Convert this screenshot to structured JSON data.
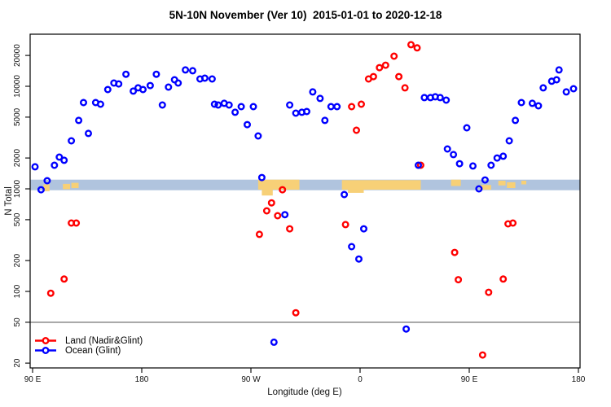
{
  "title": "5N-10N November (Ver 10)  2015-01-01 to 2020-12-18",
  "chart_data": {
    "type": "scatter",
    "title": "5N-10N November (Ver 10)  2015-01-01 to 2020-12-18",
    "xlabel": "Longitude (deg E)",
    "ylabel": "N Total",
    "x_axis": {
      "note": "longitude axis wraps eastward: 90E -> 180 -> 90W -> 0 -> 90E -> 180 (deg stored as 90..540 along axis)",
      "range_deg": [
        90,
        540
      ],
      "ticks_deg": [
        90,
        180,
        270,
        360,
        450,
        540
      ],
      "tick_labels": [
        "90 E",
        "180",
        "90 W",
        "0",
        "90 E",
        "180"
      ]
    },
    "y_axis": {
      "scale": "log",
      "range": [
        18,
        32000
      ],
      "ticks": [
        20,
        50,
        100,
        200,
        500,
        1000,
        2000,
        5000,
        10000,
        20000
      ]
    },
    "grid": false,
    "threshold_line": {
      "n": 50,
      "color": "#7f7f7f"
    },
    "band": {
      "n_low": 970,
      "n_high": 1230,
      "color": "#B0C4DE"
    },
    "land_patch_color": "#F7D077",
    "land_patches": [
      {
        "deg0": 99,
        "deg1": 104,
        "f0": 0.45,
        "f1": 1.1
      },
      {
        "deg0": 115,
        "deg1": 121,
        "f0": 0.4,
        "f1": 0.9
      },
      {
        "deg0": 122,
        "deg1": 128,
        "f0": 0.3,
        "f1": 0.8
      },
      {
        "deg0": 276,
        "deg1": 310,
        "f0": 0.0,
        "f1": 0.95
      },
      {
        "deg0": 279,
        "deg1": 288,
        "f0": 0.9,
        "f1": 1.5
      },
      {
        "deg0": 345,
        "deg1": 410,
        "f0": 0.05,
        "f1": 0.95
      },
      {
        "deg0": 350,
        "deg1": 363,
        "f0": 0.9,
        "f1": 1.25
      },
      {
        "deg0": 435,
        "deg1": 443,
        "f0": 0.0,
        "f1": 0.6
      },
      {
        "deg0": 459,
        "deg1": 468,
        "f0": 0.5,
        "f1": 0.95
      },
      {
        "deg0": 474,
        "deg1": 480,
        "f0": 0.1,
        "f1": 0.55
      },
      {
        "deg0": 481,
        "deg1": 488,
        "f0": 0.25,
        "f1": 0.8
      },
      {
        "deg0": 493,
        "deg1": 497,
        "f0": 0.1,
        "f1": 0.45
      }
    ],
    "legend": {
      "position": "bottom-left"
    },
    "series": [
      {
        "name": "Land (Nadir&Glint)",
        "color": "#FF0000",
        "points": [
          [
            105,
            96
          ],
          [
            116,
            132
          ],
          [
            122,
            464
          ],
          [
            126,
            464
          ],
          [
            277,
            360
          ],
          [
            283,
            610
          ],
          [
            287,
            730
          ],
          [
            292,
            547
          ],
          [
            296,
            980
          ],
          [
            302,
            408
          ],
          [
            307,
            62
          ],
          [
            348,
            448
          ],
          [
            353,
            6330
          ],
          [
            357,
            3730
          ],
          [
            361,
            6690
          ],
          [
            367,
            11790
          ],
          [
            371,
            12440
          ],
          [
            376,
            15190
          ],
          [
            381,
            16040
          ],
          [
            388,
            19650
          ],
          [
            392,
            12440
          ],
          [
            397,
            9650
          ],
          [
            402,
            25460
          ],
          [
            407,
            23710
          ],
          [
            410,
            1700
          ],
          [
            438,
            240
          ],
          [
            441,
            130
          ],
          [
            461,
            24
          ],
          [
            466,
            98
          ],
          [
            478,
            132
          ],
          [
            482,
            456
          ],
          [
            486,
            464
          ]
        ]
      },
      {
        "name": "Ocean (Glint)",
        "color": "#0000FF",
        "points": [
          [
            92,
            1640
          ],
          [
            97,
            980
          ],
          [
            102,
            1200
          ],
          [
            108,
            1700
          ],
          [
            112,
            2040
          ],
          [
            116,
            1900
          ],
          [
            122,
            2940
          ],
          [
            128,
            4650
          ],
          [
            132,
            6940
          ],
          [
            136,
            3470
          ],
          [
            142,
            6940
          ],
          [
            146,
            6690
          ],
          [
            152,
            9300
          ],
          [
            157,
            10750
          ],
          [
            161,
            10550
          ],
          [
            167,
            13100
          ],
          [
            173,
            8970
          ],
          [
            177,
            9650
          ],
          [
            181,
            9300
          ],
          [
            187,
            10170
          ],
          [
            192,
            13100
          ],
          [
            197,
            6570
          ],
          [
            202,
            9820
          ],
          [
            207,
            11580
          ],
          [
            210,
            10750
          ],
          [
            216,
            14430
          ],
          [
            222,
            14170
          ],
          [
            228,
            11790
          ],
          [
            232,
            12000
          ],
          [
            238,
            11790
          ],
          [
            240,
            6690
          ],
          [
            243,
            6570
          ],
          [
            248,
            6820
          ],
          [
            252,
            6570
          ],
          [
            257,
            5580
          ],
          [
            262,
            6330
          ],
          [
            267,
            4230
          ],
          [
            272,
            6330
          ],
          [
            276,
            3280
          ],
          [
            279,
            1290
          ],
          [
            289,
            32
          ],
          [
            298,
            560
          ],
          [
            302,
            6570
          ],
          [
            307,
            5470
          ],
          [
            312,
            5580
          ],
          [
            316,
            5680
          ],
          [
            321,
            8810
          ],
          [
            327,
            7610
          ],
          [
            331,
            4650
          ],
          [
            336,
            6330
          ],
          [
            341,
            6330
          ],
          [
            347,
            880
          ],
          [
            353,
            273
          ],
          [
            359,
            207
          ],
          [
            363,
            408
          ],
          [
            398,
            43
          ],
          [
            408,
            1700
          ],
          [
            413,
            7760
          ],
          [
            418,
            7760
          ],
          [
            422,
            7900
          ],
          [
            426,
            7760
          ],
          [
            431,
            7330
          ],
          [
            432,
            2450
          ],
          [
            437,
            2160
          ],
          [
            442,
            1760
          ],
          [
            448,
            3940
          ],
          [
            453,
            1670
          ],
          [
            458,
            1000
          ],
          [
            463,
            1220
          ],
          [
            468,
            1700
          ],
          [
            473,
            2000
          ],
          [
            478,
            2080
          ],
          [
            483,
            2940
          ],
          [
            488,
            4650
          ],
          [
            493,
            6940
          ],
          [
            502,
            6820
          ],
          [
            507,
            6450
          ],
          [
            511,
            9650
          ],
          [
            518,
            11200
          ],
          [
            522,
            11580
          ],
          [
            524,
            14430
          ],
          [
            530,
            8810
          ],
          [
            536,
            9470
          ]
        ]
      }
    ]
  }
}
